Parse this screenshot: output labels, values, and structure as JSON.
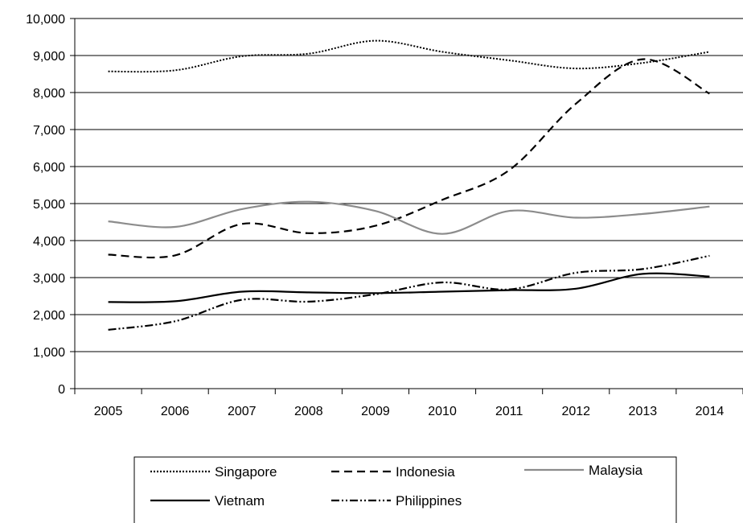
{
  "chart_data": {
    "type": "line",
    "title": "",
    "xlabel": "",
    "ylabel": "",
    "x": [
      "2005",
      "2006",
      "2007",
      "2008",
      "2009",
      "2010",
      "2011",
      "2012",
      "2013",
      "2014"
    ],
    "ylim": [
      0,
      10000
    ],
    "yticks": [
      "0",
      "1,000",
      "2,000",
      "3,000",
      "4,000",
      "5,000",
      "6,000",
      "7,000",
      "8,000",
      "9,000",
      "10,000"
    ],
    "grid": "horizontal",
    "legend_position": "bottom",
    "series": [
      {
        "name": "Singapore",
        "style": "dotted",
        "color": "#000000",
        "values": [
          8570,
          8600,
          8980,
          9050,
          9400,
          9100,
          8870,
          8650,
          8800,
          9100
        ]
      },
      {
        "name": "Indonesia",
        "style": "dashed",
        "color": "#000000",
        "values": [
          3620,
          3600,
          4450,
          4200,
          4400,
          5100,
          5900,
          7700,
          8900,
          7970
        ]
      },
      {
        "name": "Malaysia",
        "style": "solid",
        "color": "#8c8c8c",
        "values": [
          4520,
          4370,
          4850,
          5050,
          4800,
          4180,
          4800,
          4620,
          4720,
          4920
        ]
      },
      {
        "name": "Vietnam",
        "style": "solid",
        "color": "#000000",
        "values": [
          2340,
          2360,
          2620,
          2600,
          2580,
          2620,
          2660,
          2700,
          3100,
          3030
        ]
      },
      {
        "name": "Philippines",
        "style": "dash-dot-dot",
        "color": "#000000",
        "values": [
          1590,
          1820,
          2400,
          2350,
          2550,
          2870,
          2680,
          3130,
          3230,
          3590
        ]
      }
    ]
  }
}
